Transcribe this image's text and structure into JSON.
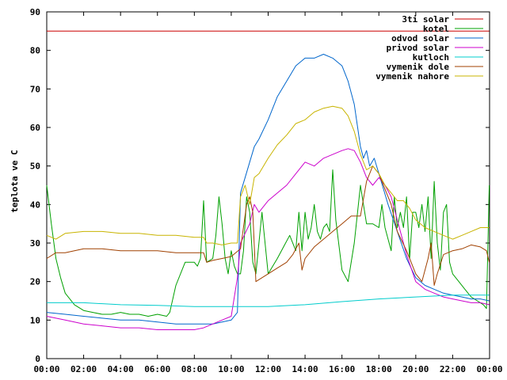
{
  "chart_data": {
    "type": "line",
    "title": "",
    "xlabel": "",
    "ylabel": "teplota ve C",
    "xlim": [
      "00:00",
      "24:00"
    ],
    "ylim": [
      0,
      90
    ],
    "yticks": [
      0,
      10,
      20,
      30,
      40,
      50,
      60,
      70,
      80,
      90
    ],
    "xticks": [
      "00:00",
      "02:00",
      "04:00",
      "06:00",
      "08:00",
      "10:00",
      "12:00",
      "14:00",
      "16:00",
      "18:00",
      "20:00",
      "22:00",
      "00:00"
    ],
    "grid": false,
    "legend_position": "top-right",
    "series": [
      {
        "name": "3ti solar",
        "color": "#cc0000",
        "x": [
          "00:00",
          "23:59"
        ],
        "y": [
          85,
          85
        ]
      },
      {
        "name": "kotel",
        "color": "#00a000",
        "x": [
          "00:00",
          "00:15",
          "00:30",
          "00:45",
          "01:00",
          "01:30",
          "02:00",
          "02:30",
          "03:00",
          "03:30",
          "04:00",
          "04:30",
          "05:00",
          "05:30",
          "06:00",
          "06:30",
          "06:40",
          "07:00",
          "07:30",
          "08:00",
          "08:10",
          "08:20",
          "08:30",
          "08:40",
          "09:00",
          "09:10",
          "09:20",
          "09:30",
          "09:40",
          "09:50",
          "10:00",
          "10:10",
          "10:20",
          "10:30",
          "10:40",
          "10:50",
          "11:00",
          "11:10",
          "11:20",
          "11:40",
          "11:50",
          "12:00",
          "12:30",
          "12:50",
          "13:10",
          "13:30",
          "13:40",
          "13:50",
          "14:00",
          "14:10",
          "14:20",
          "14:30",
          "14:40",
          "14:50",
          "15:00",
          "15:10",
          "15:20",
          "15:30",
          "15:40",
          "16:00",
          "16:20",
          "16:40",
          "17:00",
          "17:10",
          "17:20",
          "17:40",
          "18:00",
          "18:10",
          "18:20",
          "18:30",
          "18:40",
          "18:50",
          "19:00",
          "19:10",
          "19:20",
          "19:30",
          "19:40",
          "19:50",
          "20:00",
          "20:10",
          "20:20",
          "20:30",
          "20:40",
          "20:50",
          "21:00",
          "21:10",
          "21:20",
          "21:30",
          "21:40",
          "21:50",
          "22:00",
          "22:20",
          "22:40",
          "23:00",
          "23:20",
          "23:40",
          "23:50",
          "23:59"
        ],
        "y": [
          45,
          35,
          26,
          21,
          17,
          14,
          12.5,
          12,
          11.5,
          11.5,
          12,
          11.5,
          11.5,
          11,
          11.5,
          11,
          12,
          19,
          25,
          25,
          24,
          26,
          41,
          25,
          26,
          32,
          42,
          35,
          26,
          22,
          28,
          24,
          22,
          22,
          28,
          42,
          38,
          25,
          22,
          38,
          30,
          22,
          26,
          29,
          32,
          28,
          38,
          28,
          38,
          31,
          34,
          40,
          33,
          31,
          34,
          35,
          33,
          49,
          36,
          23,
          20,
          30,
          45,
          40,
          35,
          35,
          34,
          40,
          34,
          31,
          28,
          42,
          34,
          38,
          34,
          42,
          26,
          38,
          38,
          34,
          40,
          33,
          42,
          26,
          46,
          30,
          23,
          38,
          40,
          25,
          22,
          20,
          18,
          16,
          15,
          14,
          13,
          45
        ]
      },
      {
        "name": "odvod solar",
        "color": "#0066cc",
        "x": [
          "00:00",
          "01:00",
          "02:00",
          "03:00",
          "04:00",
          "05:00",
          "06:00",
          "07:00",
          "08:00",
          "09:00",
          "09:30",
          "10:00",
          "10:20",
          "10:30",
          "10:45",
          "11:00",
          "11:15",
          "11:30",
          "12:00",
          "12:30",
          "13:00",
          "13:30",
          "14:00",
          "14:30",
          "15:00",
          "15:30",
          "16:00",
          "16:20",
          "16:40",
          "17:00",
          "17:10",
          "17:20",
          "17:30",
          "17:45",
          "18:00",
          "18:15",
          "18:30",
          "19:00",
          "19:30",
          "20:00",
          "20:30",
          "21:00",
          "21:30",
          "22:00",
          "22:30",
          "23:00",
          "23:30",
          "23:59"
        ],
        "y": [
          12,
          11.5,
          11,
          10.5,
          10,
          10,
          9.5,
          9,
          9,
          9,
          9.5,
          10,
          12,
          43,
          47,
          51,
          55,
          57,
          62,
          68,
          72,
          76,
          78,
          78,
          79,
          78,
          76,
          72,
          66,
          55,
          52,
          54,
          50,
          52,
          48,
          44,
          40,
          33,
          26,
          21,
          19,
          18,
          17,
          16.5,
          16,
          15.5,
          15.5,
          15
        ]
      },
      {
        "name": "privod solar",
        "color": "#cc00cc",
        "x": [
          "00:00",
          "01:00",
          "02:00",
          "03:00",
          "04:00",
          "05:00",
          "06:00",
          "07:00",
          "08:00",
          "08:30",
          "09:00",
          "09:30",
          "10:00",
          "10:20",
          "10:30",
          "11:00",
          "11:15",
          "11:30",
          "12:00",
          "12:30",
          "13:00",
          "13:30",
          "14:00",
          "14:30",
          "15:00",
          "15:30",
          "16:00",
          "16:20",
          "16:40",
          "17:00",
          "17:20",
          "17:40",
          "18:00",
          "18:20",
          "18:40",
          "19:00",
          "19:30",
          "20:00",
          "20:30",
          "21:00",
          "21:30",
          "22:00",
          "22:30",
          "23:00",
          "23:30",
          "23:59"
        ],
        "y": [
          11,
          10,
          9,
          8.5,
          8,
          8,
          7.5,
          7.5,
          7.5,
          8,
          9,
          10,
          11,
          21,
          30,
          35,
          40,
          38,
          41,
          43,
          45,
          48,
          51,
          50,
          52,
          53,
          54,
          54.5,
          54,
          51,
          47,
          45,
          47,
          45,
          42,
          36,
          27,
          20,
          18,
          17,
          16,
          15.5,
          15,
          14.5,
          14.5,
          14
        ]
      },
      {
        "name": "kutloch",
        "color": "#00cccc",
        "x": [
          "00:00",
          "02:00",
          "04:00",
          "06:00",
          "08:00",
          "10:00",
          "12:00",
          "14:00",
          "16:00",
          "18:00",
          "20:00",
          "22:00",
          "23:59"
        ],
        "y": [
          14.5,
          14.5,
          14,
          13.8,
          13.5,
          13.5,
          13.5,
          14,
          14.8,
          15.5,
          16,
          16.5,
          16.5
        ]
      },
      {
        "name": "vymenik dole",
        "color": "#a04000",
        "x": [
          "00:00",
          "00:30",
          "01:00",
          "02:00",
          "03:00",
          "04:00",
          "05:00",
          "06:00",
          "07:00",
          "08:00",
          "08:30",
          "08:40",
          "09:00",
          "09:30",
          "10:00",
          "10:30",
          "10:50",
          "11:00",
          "11:10",
          "11:20",
          "11:40",
          "12:00",
          "12:30",
          "13:00",
          "13:20",
          "13:40",
          "13:50",
          "14:00",
          "14:30",
          "15:00",
          "15:30",
          "16:00",
          "16:30",
          "17:00",
          "17:20",
          "17:40",
          "18:00",
          "18:20",
          "18:40",
          "19:00",
          "19:30",
          "20:00",
          "20:20",
          "20:40",
          "20:50",
          "21:00",
          "21:10",
          "21:30",
          "22:00",
          "22:30",
          "23:00",
          "23:30",
          "23:50",
          "23:59"
        ],
        "y": [
          26,
          27.5,
          27.5,
          28.5,
          28.5,
          28,
          28,
          28,
          27.5,
          27.5,
          27.5,
          25,
          25.5,
          26,
          26.5,
          28.5,
          40,
          42,
          38,
          20,
          21,
          22,
          23.5,
          25,
          27,
          30,
          23,
          26,
          29,
          31,
          33,
          35,
          37,
          37,
          46,
          50,
          48,
          44,
          40,
          33,
          28,
          22,
          20,
          26,
          30,
          19,
          22,
          27,
          28,
          28.5,
          29.5,
          29,
          28,
          25
        ]
      },
      {
        "name": "vymenik nahore",
        "color": "#c8b400",
        "x": [
          "00:00",
          "00:30",
          "01:00",
          "02:00",
          "03:00",
          "04:00",
          "05:00",
          "06:00",
          "07:00",
          "08:00",
          "08:30",
          "08:40",
          "09:00",
          "09:30",
          "10:00",
          "10:20",
          "10:30",
          "10:45",
          "11:00",
          "11:15",
          "11:30",
          "12:00",
          "12:30",
          "13:00",
          "13:30",
          "14:00",
          "14:30",
          "15:00",
          "15:30",
          "16:00",
          "16:20",
          "16:40",
          "17:00",
          "17:20",
          "17:40",
          "18:00",
          "18:20",
          "18:40",
          "19:00",
          "19:20",
          "19:40",
          "20:00",
          "20:30",
          "21:00",
          "21:30",
          "22:00",
          "22:30",
          "23:00",
          "23:30",
          "23:59"
        ],
        "y": [
          32,
          31,
          32.5,
          33,
          33,
          32.5,
          32.5,
          32,
          32,
          31.5,
          31.5,
          30,
          30,
          29.5,
          30,
          30,
          42,
          45,
          40,
          47,
          48,
          52,
          55.5,
          58,
          61,
          62,
          64,
          65,
          65.5,
          65,
          63,
          59,
          53,
          49,
          50,
          48,
          45,
          43,
          41,
          41,
          39,
          36,
          34,
          33,
          32,
          31,
          32,
          33,
          34,
          34
        ]
      }
    ]
  }
}
